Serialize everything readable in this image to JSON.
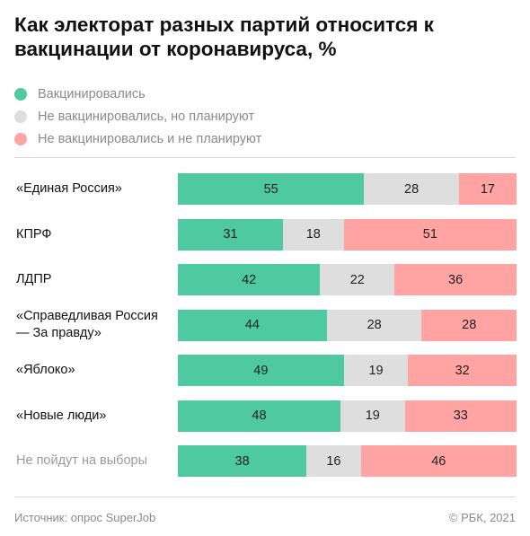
{
  "title": "Как электорат разных партий относится к вакцинации от коронавируса, %",
  "legend": [
    {
      "label": "Вакцинировались",
      "color": "#4ec9a0"
    },
    {
      "label": "Не вакцинировались, но планируют",
      "color": "#dedede"
    },
    {
      "label": "Не вакцинировались и не планируют",
      "color": "#ffa3a3"
    }
  ],
  "chart_data": {
    "type": "bar",
    "orientation": "horizontal",
    "stacked": true,
    "unit": "%",
    "categories": [
      "«Единая Россия»",
      "КПРФ",
      "ЛДПР",
      "«Справедливая Россия — За правду»",
      "«Яблоко»",
      "«Новые люди»",
      "Не пойдут на выборы"
    ],
    "series": [
      {
        "name": "Вакцинировались",
        "color": "#4ec9a0",
        "values": [
          55,
          31,
          42,
          44,
          49,
          48,
          38
        ]
      },
      {
        "name": "Не вакцинировались, но планируют",
        "color": "#dedede",
        "values": [
          28,
          18,
          22,
          28,
          19,
          19,
          16
        ]
      },
      {
        "name": "Не вакцинировались и не планируют",
        "color": "#ffa3a3",
        "values": [
          17,
          51,
          36,
          28,
          32,
          33,
          46
        ]
      }
    ],
    "muted_categories": [
      "Не пойдут на выборы"
    ],
    "grid": false
  },
  "footer": {
    "source": "Источник:  опрос SuperJob",
    "copyright": "© РБК, 2021"
  }
}
